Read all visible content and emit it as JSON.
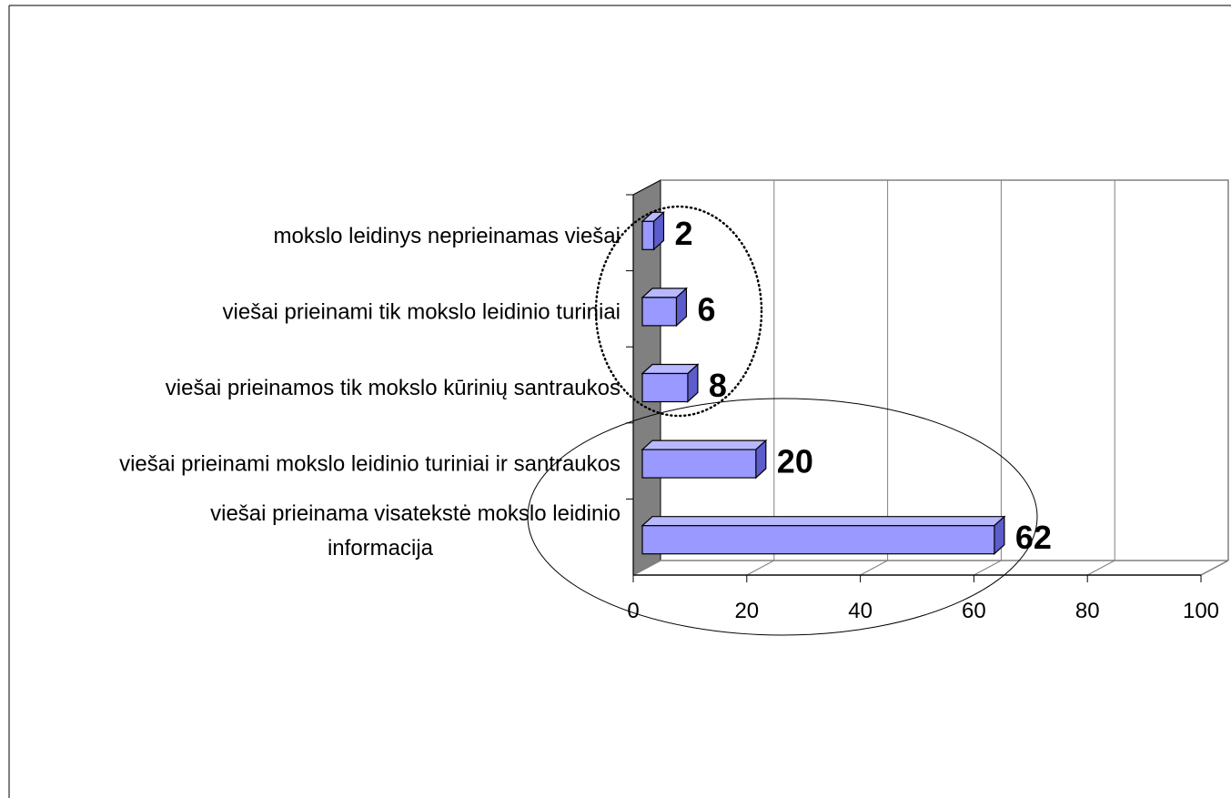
{
  "chart_data": {
    "type": "bar",
    "orientation": "horizontal",
    "three_d": true,
    "categories": [
      "viešai prieinama visatekstė mokslo leidinio informacija",
      "viešai prieinami mokslo leidinio turiniai ir santraukos",
      "viešai prieinamos tik mokslo kūrinių santraukos",
      "viešai prieinami tik mokslo leidinio turiniai",
      "mokslo leidinys neprieinamas viešai"
    ],
    "category_lines": [
      [
        "viešai prieinama visatekstė mokslo leidinio",
        "informacija"
      ],
      [
        "viešai prieinami mokslo leidinio turiniai ir santraukos"
      ],
      [
        "viešai prieinamos tik mokslo kūrinių santraukos"
      ],
      [
        "viešai prieinami tik mokslo leidinio turiniai"
      ],
      [
        "mokslo leidinys neprieinamas viešai"
      ]
    ],
    "values": [
      62,
      20,
      8,
      6,
      2
    ],
    "data_labels": [
      "62",
      "20",
      "8",
      "6",
      "2"
    ],
    "xlim": [
      0,
      100
    ],
    "x_ticks": [
      0,
      20,
      40,
      60,
      80,
      100
    ],
    "x_tick_labels": [
      "0",
      "20",
      "40",
      "60",
      "80",
      "100"
    ],
    "grid": true,
    "legend": "none",
    "annotations": [
      {
        "shape": "ellipse",
        "style": "dotted",
        "encloses": [
          "viešai prieinamos tik mokslo kūrinių santraukos",
          "viešai prieinami tik mokslo leidinio turiniai",
          "mokslo leidinys neprieinamas viešai"
        ]
      },
      {
        "shape": "ellipse",
        "style": "solid",
        "encloses": [
          "viešai prieinama visatekstė mokslo leidinio informacija",
          "viešai prieinami mokslo leidinio turiniai ir santraukos"
        ]
      }
    ],
    "colors": {
      "bar_front": "#9999ff",
      "bar_top": "#b8b8ff",
      "bar_side": "#5c5ccc",
      "wall_side": "#808080",
      "grid": "#808080"
    }
  }
}
